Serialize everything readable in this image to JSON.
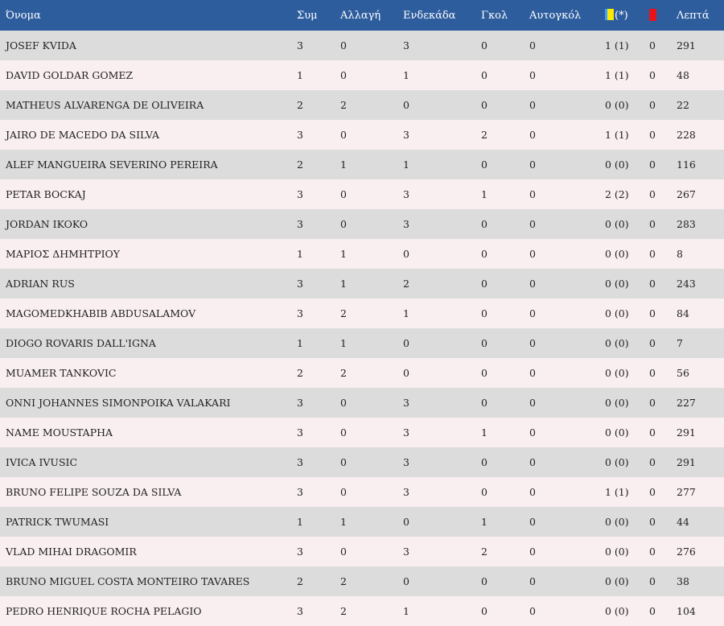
{
  "headers": {
    "name": "Όνομα",
    "sym": "Συμ",
    "sub": "Αλλαγή",
    "eleven": "Ενδεκάδα",
    "goals": "Γκολ",
    "owngoals": "Αυτογκόλ",
    "yellow_suffix": "(*)",
    "yellow_icon": "yellow-card-icon",
    "red_icon": "red-card-icon",
    "minutes": "Λεπτά"
  },
  "colors": {
    "header_bg": "#2e5d9e",
    "row_odd": "#dcdcdc",
    "row_even": "#f9eff0",
    "yellow_card": "#ffe900",
    "red_card": "#e8141b"
  },
  "rows": [
    {
      "name": "JOSEF KVIDA",
      "sym": "3",
      "sub": "0",
      "eleven": "3",
      "goals": "0",
      "owngoals": "0",
      "yellow": "1 (1)",
      "red": "0",
      "minutes": "291"
    },
    {
      "name": "DAVID GOLDAR GOMEZ",
      "sym": "1",
      "sub": "0",
      "eleven": "1",
      "goals": "0",
      "owngoals": "0",
      "yellow": "1 (1)",
      "red": "0",
      "minutes": "48"
    },
    {
      "name": "MATHEUS ALVARENGA DE OLIVEIRA",
      "sym": "2",
      "sub": "2",
      "eleven": "0",
      "goals": "0",
      "owngoals": "0",
      "yellow": "0 (0)",
      "red": "0",
      "minutes": "22"
    },
    {
      "name": "JAIRO DE MACEDO DA SILVA",
      "sym": "3",
      "sub": "0",
      "eleven": "3",
      "goals": "2",
      "owngoals": "0",
      "yellow": "1 (1)",
      "red": "0",
      "minutes": "228"
    },
    {
      "name": "ALEF MANGUEIRA SEVERINO PEREIRA",
      "sym": "2",
      "sub": "1",
      "eleven": "1",
      "goals": "0",
      "owngoals": "0",
      "yellow": "0 (0)",
      "red": "0",
      "minutes": "116"
    },
    {
      "name": "PETAR BOCKAJ",
      "sym": "3",
      "sub": "0",
      "eleven": "3",
      "goals": "1",
      "owngoals": "0",
      "yellow": "2 (2)",
      "red": "0",
      "minutes": "267"
    },
    {
      "name": "JORDAN IKOKO",
      "sym": "3",
      "sub": "0",
      "eleven": "3",
      "goals": "0",
      "owngoals": "0",
      "yellow": "0 (0)",
      "red": "0",
      "minutes": "283"
    },
    {
      "name": "ΜΑΡΙΟΣ ΔΗΜΗΤΡΙΟΥ",
      "sym": "1",
      "sub": "1",
      "eleven": "0",
      "goals": "0",
      "owngoals": "0",
      "yellow": "0 (0)",
      "red": "0",
      "minutes": "8"
    },
    {
      "name": "ADRIAN RUS",
      "sym": "3",
      "sub": "1",
      "eleven": "2",
      "goals": "0",
      "owngoals": "0",
      "yellow": "0 (0)",
      "red": "0",
      "minutes": "243"
    },
    {
      "name": "MAGOMEDKHABIB ABDUSALAMOV",
      "sym": "3",
      "sub": "2",
      "eleven": "1",
      "goals": "0",
      "owngoals": "0",
      "yellow": "0 (0)",
      "red": "0",
      "minutes": "84"
    },
    {
      "name": "DIOGO ROVARIS DALL'IGNA",
      "sym": "1",
      "sub": "1",
      "eleven": "0",
      "goals": "0",
      "owngoals": "0",
      "yellow": "0 (0)",
      "red": "0",
      "minutes": "7"
    },
    {
      "name": "MUAMER TANKOVIC",
      "sym": "2",
      "sub": "2",
      "eleven": "0",
      "goals": "0",
      "owngoals": "0",
      "yellow": "0 (0)",
      "red": "0",
      "minutes": "56"
    },
    {
      "name": "ONNI JOHANNES SIMONPOIKA VALAKARI",
      "sym": "3",
      "sub": "0",
      "eleven": "3",
      "goals": "0",
      "owngoals": "0",
      "yellow": "0 (0)",
      "red": "0",
      "minutes": "227"
    },
    {
      "name": "NAME MOUSTAPHA",
      "sym": "3",
      "sub": "0",
      "eleven": "3",
      "goals": "1",
      "owngoals": "0",
      "yellow": "0 (0)",
      "red": "0",
      "minutes": "291"
    },
    {
      "name": "IVICA IVUSIC",
      "sym": "3",
      "sub": "0",
      "eleven": "3",
      "goals": "0",
      "owngoals": "0",
      "yellow": "0 (0)",
      "red": "0",
      "minutes": "291"
    },
    {
      "name": "BRUNO FELIPE SOUZA DA SILVA",
      "sym": "3",
      "sub": "0",
      "eleven": "3",
      "goals": "0",
      "owngoals": "0",
      "yellow": "1 (1)",
      "red": "0",
      "minutes": "277"
    },
    {
      "name": "PATRICK TWUMASI",
      "sym": "1",
      "sub": "1",
      "eleven": "0",
      "goals": "1",
      "owngoals": "0",
      "yellow": "0 (0)",
      "red": "0",
      "minutes": "44"
    },
    {
      "name": "VLAD MIHAI DRAGOMIR",
      "sym": "3",
      "sub": "0",
      "eleven": "3",
      "goals": "2",
      "owngoals": "0",
      "yellow": "0 (0)",
      "red": "0",
      "minutes": "276"
    },
    {
      "name": "BRUNO MIGUEL COSTA MONTEIRO TAVARES",
      "sym": "2",
      "sub": "2",
      "eleven": "0",
      "goals": "0",
      "owngoals": "0",
      "yellow": "0 (0)",
      "red": "0",
      "minutes": "38"
    },
    {
      "name": "PEDRO HENRIQUE ROCHA PELAGIO",
      "sym": "3",
      "sub": "2",
      "eleven": "1",
      "goals": "0",
      "owngoals": "0",
      "yellow": "0 (0)",
      "red": "0",
      "minutes": "104"
    }
  ]
}
